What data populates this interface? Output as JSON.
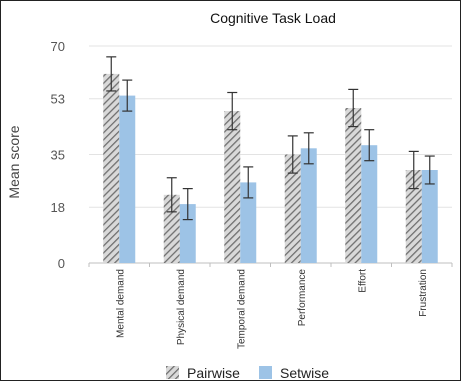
{
  "chart_data": {
    "type": "bar",
    "title": "Cognitive Task Load",
    "xlabel": "",
    "ylabel": "Mean score",
    "ylim": [
      0,
      70
    ],
    "yticks": [
      "0",
      "18",
      "35",
      "53",
      "70"
    ],
    "grid": true,
    "legend_position": "bottom",
    "categories": [
      "Mental demand",
      "Physical demand",
      "Temporal demand",
      "Performance",
      "Effort",
      "Frustration"
    ],
    "series": [
      {
        "name": "Pairwise",
        "pattern": "diagonal-hatch",
        "color": "#7f7f7f",
        "values": [
          61,
          22,
          49,
          35,
          50,
          30
        ],
        "error": [
          5.5,
          5.5,
          6,
          6,
          6,
          6
        ]
      },
      {
        "name": "Setwise",
        "pattern": "solid",
        "color": "#9dc3e6",
        "values": [
          54,
          19,
          26,
          37,
          38,
          30
        ],
        "error": [
          5,
          5,
          5,
          5,
          5,
          4.5
        ]
      }
    ]
  }
}
